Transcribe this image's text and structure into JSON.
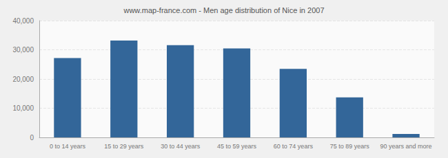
{
  "chart_data": {
    "type": "bar",
    "title": "www.map-france.com - Men age distribution of Nice in 2007",
    "categories": [
      "0 to 14 years",
      "15 to 29 years",
      "30 to 44 years",
      "45 to 59 years",
      "60 to 74 years",
      "75 to 89 years",
      "90 years and more"
    ],
    "values": [
      27200,
      33200,
      31600,
      30500,
      23500,
      13700,
      1200
    ],
    "color": "#336699",
    "ylim": [
      0,
      40000
    ],
    "yticks": [
      0,
      10000,
      20000,
      30000,
      40000
    ],
    "grid": true
  }
}
